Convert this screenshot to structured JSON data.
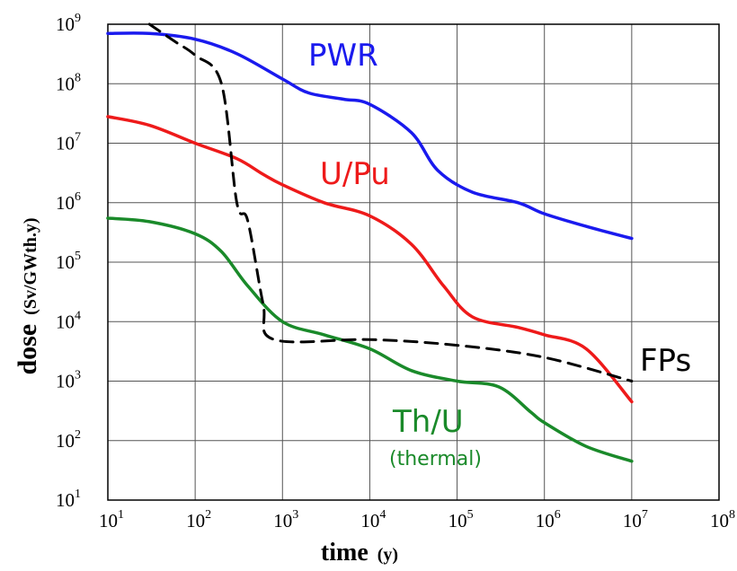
{
  "chart_data": {
    "type": "line",
    "xlabel": {
      "main": "time",
      "unit": "(y)"
    },
    "ylabel": {
      "main": "dose",
      "unit": "(Sv/GWth.y)"
    },
    "x_scale": "log",
    "y_scale": "log",
    "xlim": [
      10,
      100000000
    ],
    "ylim": [
      10,
      1000000000
    ],
    "grid": true,
    "x_ticks": [
      {
        "base": "10",
        "exp": "1",
        "value": 10
      },
      {
        "base": "10",
        "exp": "2",
        "value": 100
      },
      {
        "base": "10",
        "exp": "3",
        "value": 1000
      },
      {
        "base": "10",
        "exp": "4",
        "value": 10000
      },
      {
        "base": "10",
        "exp": "5",
        "value": 100000
      },
      {
        "base": "10",
        "exp": "6",
        "value": 1000000
      },
      {
        "base": "10",
        "exp": "7",
        "value": 10000000
      },
      {
        "base": "10",
        "exp": "8",
        "value": 100000000
      }
    ],
    "y_ticks": [
      {
        "base": "10",
        "exp": "1",
        "value": 10
      },
      {
        "base": "10",
        "exp": "2",
        "value": 100
      },
      {
        "base": "10",
        "exp": "3",
        "value": 1000
      },
      {
        "base": "10",
        "exp": "4",
        "value": 10000
      },
      {
        "base": "10",
        "exp": "5",
        "value": 100000
      },
      {
        "base": "10",
        "exp": "6",
        "value": 1000000
      },
      {
        "base": "10",
        "exp": "7",
        "value": 10000000
      },
      {
        "base": "10",
        "exp": "8",
        "value": 100000000
      },
      {
        "base": "10",
        "exp": "9",
        "value": 1000000000
      }
    ],
    "series": [
      {
        "name": "PWR",
        "color": "#1a1aee",
        "style": "solid",
        "points": [
          [
            10,
            700000000.0
          ],
          [
            30,
            700000000.0
          ],
          [
            100,
            560000000.0
          ],
          [
            300,
            320000000.0
          ],
          [
            1000,
            120000000.0
          ],
          [
            2000,
            70000000.0
          ],
          [
            5000,
            55000000.0
          ],
          [
            10000,
            45000000.0
          ],
          [
            30000,
            15000000.0
          ],
          [
            60000,
            3500000.0
          ],
          [
            150000,
            1500000.0
          ],
          [
            500000,
            1000000.0
          ],
          [
            1000000,
            650000.0
          ],
          [
            3000000,
            400000.0
          ],
          [
            10000000,
            250000.0
          ]
        ]
      },
      {
        "name": "U/Pu",
        "color": "#ee1a1a",
        "style": "solid",
        "points": [
          [
            10,
            28000000.0
          ],
          [
            30,
            20000000.0
          ],
          [
            100,
            10000000.0
          ],
          [
            300,
            5500000.0
          ],
          [
            600,
            3000000.0
          ],
          [
            1000,
            2000000.0
          ],
          [
            3000,
            1000000.0
          ],
          [
            10000,
            600000.0
          ],
          [
            30000,
            200000.0
          ],
          [
            70000,
            40000.0
          ],
          [
            150000,
            12000.0
          ],
          [
            500000,
            8000.0
          ],
          [
            1000000,
            6000.0
          ],
          [
            3000000,
            3500.0
          ],
          [
            10000000,
            450.0
          ]
        ]
      },
      {
        "name": "Th/U",
        "subtitle": "(thermal)",
        "color": "#1a8a2a",
        "style": "solid",
        "points": [
          [
            10,
            550000.0
          ],
          [
            30,
            480000.0
          ],
          [
            100,
            300000.0
          ],
          [
            200,
            150000.0
          ],
          [
            400,
            40000.0
          ],
          [
            1000,
            10000.0
          ],
          [
            3000,
            6000.0
          ],
          [
            10000,
            3500.0
          ],
          [
            30000,
            1500.0
          ],
          [
            100000,
            1000.0
          ],
          [
            300000,
            800.0
          ],
          [
            700000,
            300.0
          ],
          [
            1000000,
            200.0
          ],
          [
            3000000,
            80.0
          ],
          [
            10000000,
            45.0
          ]
        ]
      },
      {
        "name": "FPs",
        "color": "#000000",
        "style": "dashed",
        "points": [
          [
            30,
            1000000000.0
          ],
          [
            60,
            500000000.0
          ],
          [
            100,
            300000000.0
          ],
          [
            200,
            100000000.0
          ],
          [
            300,
            1000000.0
          ],
          [
            400,
            500000.0
          ],
          [
            600,
            20000.0
          ],
          [
            800,
            5000.0
          ],
          [
            10000,
            5000.0
          ],
          [
            100000,
            4000.0
          ],
          [
            1000000,
            2500.0
          ],
          [
            10000000,
            1000.0
          ]
        ]
      }
    ]
  }
}
